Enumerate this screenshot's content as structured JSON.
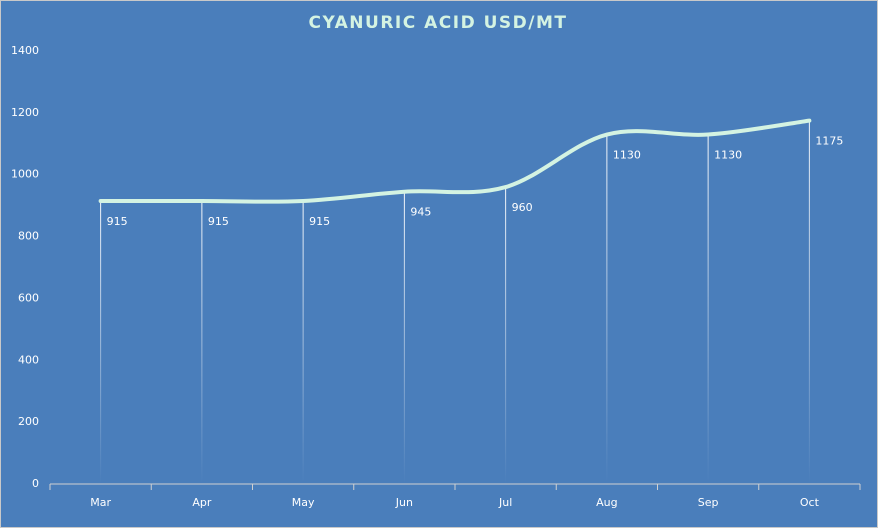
{
  "chart_data": {
    "type": "line",
    "title": "CYANURIC ACID USD/MT",
    "categories": [
      "Mar",
      "Apr",
      "May",
      "Jun",
      "Jul",
      "Aug",
      "Sep",
      "Oct"
    ],
    "values": [
      915,
      915,
      915,
      945,
      960,
      1130,
      1130,
      1175
    ],
    "color": "#d4f3e2",
    "smooth": true,
    "drop_lines": true,
    "data_labels": true,
    "ylim": [
      0,
      1400
    ],
    "yticks": [
      0,
      200,
      400,
      600,
      800,
      1000,
      1200,
      1400
    ],
    "grid": false
  }
}
